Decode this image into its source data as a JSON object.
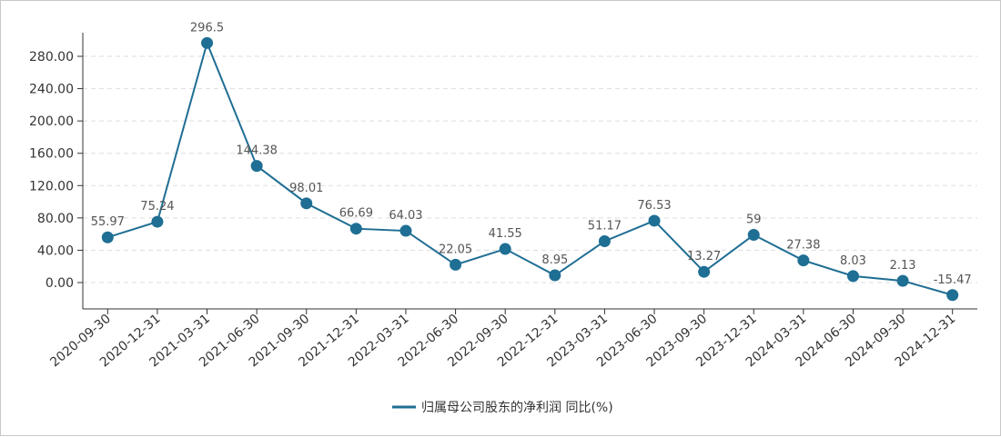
{
  "chart_data": {
    "type": "line",
    "title": "",
    "xlabel": "",
    "ylabel": "",
    "categories": [
      "2020-09-30",
      "2020-12-31",
      "2021-03-31",
      "2021-06-30",
      "2021-09-30",
      "2021-12-31",
      "2022-03-31",
      "2022-06-30",
      "2022-09-30",
      "2022-12-31",
      "2023-03-31",
      "2023-06-30",
      "2023-09-30",
      "2023-12-31",
      "2024-03-31",
      "2024-06-30",
      "2024-09-30",
      "2024-12-31"
    ],
    "series": [
      {
        "name": "归属母公司股东的净利润 同比(%)",
        "color": "#1f6e94",
        "values": [
          55.97,
          75.24,
          296.5,
          144.38,
          98.01,
          66.69,
          64.03,
          22.05,
          41.55,
          8.95,
          51.17,
          76.53,
          13.27,
          59,
          27.38,
          8.03,
          2.13,
          -15.47
        ],
        "labels": [
          "55.97",
          "75.24",
          "296.5",
          "144.38",
          "98.01",
          "66.69",
          "64.03",
          "22.05",
          "41.55",
          "8.95",
          "51.17",
          "76.53",
          "13.27",
          "59",
          "27.38",
          "8.03",
          "2.13",
          "-15.47"
        ]
      }
    ],
    "yticks": [
      "0.00",
      "40.00",
      "80.00",
      "120.00",
      "160.00",
      "200.00",
      "240.00",
      "280.00"
    ],
    "ylim": [
      -30,
      310
    ],
    "grid": true,
    "legend_position": "bottom-center"
  }
}
